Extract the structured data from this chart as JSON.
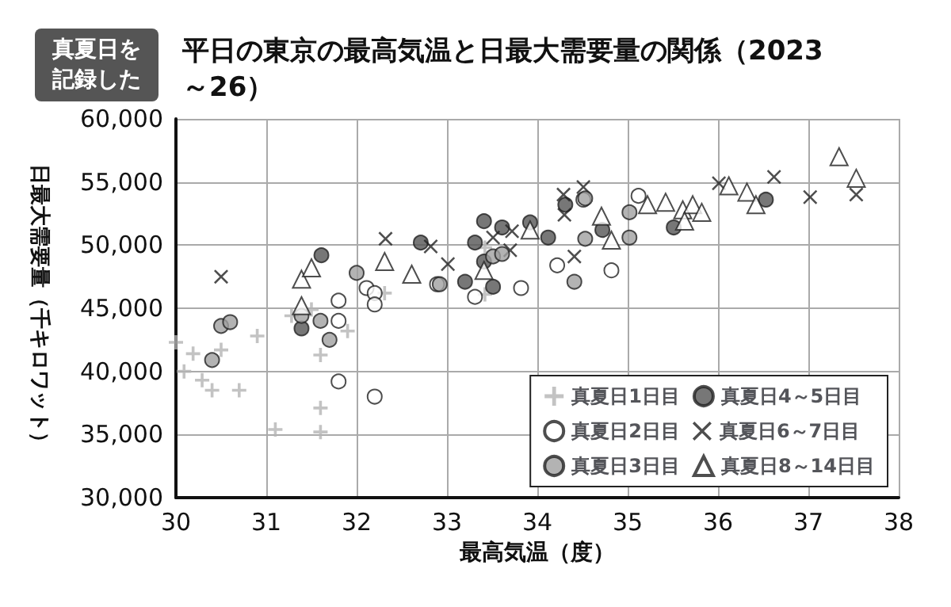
{
  "chart_data": {
    "type": "scatter",
    "title": "平日の東京の最高気温と日最大需要量の関係（2023～26）",
    "subtitle": "真夏日を記録した",
    "xlabel": "最高気温（度）",
    "ylabel": "日最大需要量（千キロワット）",
    "xlim": [
      30,
      38
    ],
    "xticks": [
      30,
      31,
      32,
      33,
      34,
      35,
      36,
      37,
      38
    ],
    "ylim": [
      30000,
      60000
    ],
    "yticks": [
      {
        "value": 30000,
        "label": "30,000"
      },
      {
        "value": 35000,
        "label": "35,000"
      },
      {
        "value": 40000,
        "label": "40,000"
      },
      {
        "value": 45000,
        "label": "45,000"
      },
      {
        "value": 50000,
        "label": "50,000"
      },
      {
        "value": 55000,
        "label": "55,000"
      },
      {
        "value": 60000,
        "label": "60,000"
      }
    ],
    "grid": true,
    "legend": "bottom right",
    "series": [
      {
        "name": "真夏日1日目",
        "color": "#b4b4b4",
        "marker": "plus",
        "x": [
          30.0,
          30.09,
          30.19,
          30.5,
          30.29,
          30.4,
          30.7,
          30.9,
          31.28,
          31.5,
          31.9,
          31.6,
          31.6,
          31.6,
          31.1,
          32.31,
          33.42,
          33.42
        ],
        "values": [
          42300,
          40000,
          41400,
          41700,
          39300,
          38500,
          38500,
          42800,
          44400,
          44900,
          43200,
          41300,
          37100,
          35200,
          35400,
          46200,
          49800,
          46100
        ]
      },
      {
        "name": "真夏日4～5日目",
        "color": "#555555",
        "marker": "circle",
        "x": [
          31.39,
          31.61,
          33.41,
          33.61,
          33.92,
          32.71,
          33.31,
          33.41,
          33.2,
          33.51,
          34.12,
          34.31,
          34.72,
          35.51,
          36.53
        ],
        "values": [
          43400,
          49200,
          51900,
          51400,
          51800,
          50200,
          50200,
          48700,
          47100,
          46700,
          50600,
          53200,
          51200,
          51400,
          53600
        ]
      },
      {
        "name": "真夏日2日目",
        "color": "#ffffff",
        "marker": "circle",
        "x": [
          31.8,
          31.8,
          31.8,
          32.2,
          32.11,
          32.2,
          32.2,
          32.89,
          33.31,
          33.82,
          34.22,
          34.51,
          35.12,
          34.82
        ],
        "values": [
          45600,
          44000,
          39200,
          38000,
          46600,
          46200,
          45300,
          46900,
          45900,
          46600,
          48400,
          53600,
          53900,
          48000
        ]
      },
      {
        "name": "真夏日6～7日目",
        "color": "#222222",
        "marker": "cross",
        "x": [
          30.5,
          32.82,
          33.01,
          33.51,
          33.72,
          33.7,
          32.32,
          34.3,
          34.41,
          34.29,
          34.51,
          36.01,
          36.62,
          37.02,
          37.53
        ],
        "values": [
          47500,
          49900,
          48500,
          50600,
          51100,
          49600,
          50500,
          52400,
          49100,
          54000,
          54600,
          54900,
          55400,
          53800,
          54000
        ]
      },
      {
        "name": "真夏日3日目",
        "color": "#a0a0a0",
        "marker": "circle",
        "x": [
          30.4,
          30.5,
          30.6,
          31.39,
          31.6,
          31.7,
          32.0,
          32.92,
          33.51,
          33.61,
          34.41,
          34.53,
          35.02,
          34.53,
          35.02
        ],
        "values": [
          40900,
          43600,
          43900,
          44400,
          44000,
          42500,
          47800,
          46900,
          49100,
          49300,
          47100,
          53700,
          52600,
          50500,
          50600
        ]
      },
      {
        "name": "真夏日8～14日目",
        "color": "#ffffff",
        "marker": "triangle",
        "x": [
          31.39,
          31.5,
          32.31,
          32.61,
          31.39,
          33.41,
          33.92,
          34.71,
          34.82,
          35.22,
          35.42,
          35.61,
          35.72,
          35.82,
          35.63,
          36.12,
          36.32,
          36.42,
          37.34,
          37.53
        ],
        "values": [
          47300,
          48200,
          48700,
          47700,
          45200,
          48000,
          51200,
          52300,
          50400,
          53200,
          53400,
          52800,
          53200,
          52600,
          51900,
          54700,
          54200,
          53200,
          57000,
          55300
        ]
      }
    ]
  }
}
